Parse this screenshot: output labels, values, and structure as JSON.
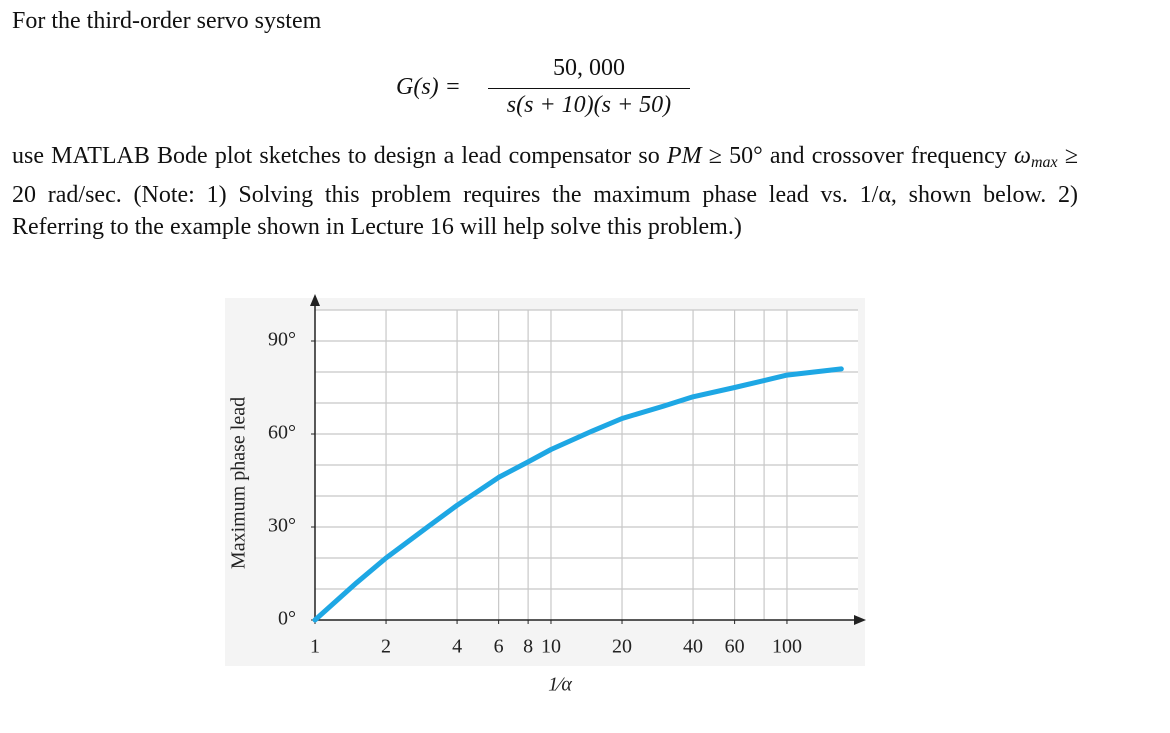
{
  "text": {
    "intro": "For the third-order servo system",
    "formula": {
      "lhs": "G(s) =",
      "numerator": "50, 000",
      "denominator": "s(s + 10)(s + 50)"
    },
    "paragraph": {
      "p1": "use MATLAB Bode plot sketches to design a lead compensator so ",
      "pm": "PM",
      "p2": " ≥ 50° and crossover frequency ",
      "omega": "ω",
      "sub": "max",
      "p3": " ≥ 20 rad/sec. (Note: 1) Solving this problem requires the maximum phase lead vs. 1/α, shown below. 2) Referring to the example shown in Lecture 16 will help solve this problem.)"
    }
  },
  "chart_data": {
    "type": "line",
    "x_label": "1⁄α",
    "y_label": "Maximum phase lead",
    "x": [
      1,
      1.5,
      2,
      3,
      4,
      6,
      8,
      10,
      15,
      20,
      30,
      40,
      60,
      100,
      170
    ],
    "series": [
      {
        "color": "#1ea7e4",
        "values": [
          0,
          12,
          20,
          30,
          37,
          46,
          51,
          55,
          61,
          65,
          69,
          72,
          75,
          79,
          81
        ]
      }
    ],
    "xscale": "log",
    "xlim": [
      1,
      200
    ],
    "ylim": [
      0,
      100
    ],
    "xticks": [
      1,
      2,
      4,
      6,
      8,
      10,
      20,
      40,
      60,
      100
    ],
    "yticks": [
      {
        "value": 0,
        "label": "0°"
      },
      {
        "value": 30,
        "label": "30°"
      },
      {
        "value": 60,
        "label": "60°"
      },
      {
        "value": 90,
        "label": "90°"
      }
    ],
    "grid": true,
    "xgrid": [
      2,
      4,
      6,
      8,
      10,
      20,
      40,
      60,
      80,
      100
    ],
    "ygrid": [
      10,
      20,
      30,
      40,
      50,
      60,
      70,
      80,
      90,
      100
    ]
  }
}
